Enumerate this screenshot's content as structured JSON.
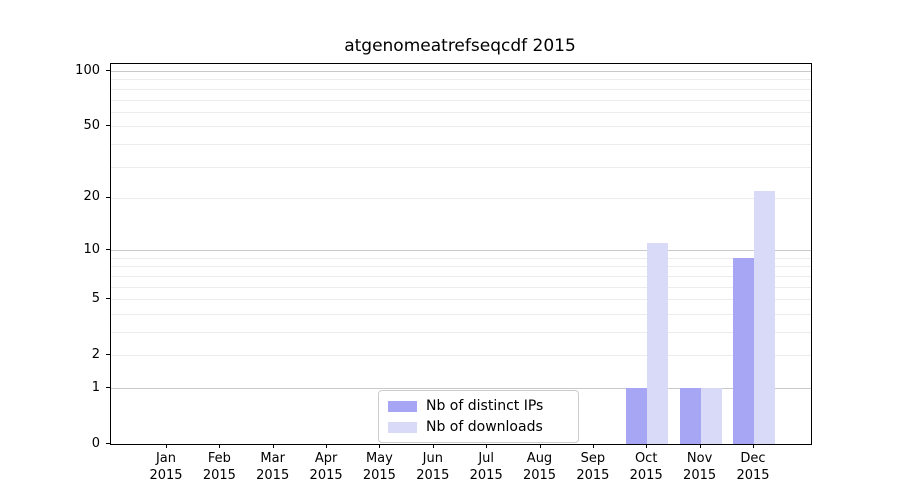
{
  "chart_data": {
    "type": "bar",
    "title": "atgenomeatrefseqcdf 2015",
    "x_year": "2015",
    "categories": [
      "Jan",
      "Feb",
      "Mar",
      "Apr",
      "May",
      "Jun",
      "Jul",
      "Aug",
      "Sep",
      "Oct",
      "Nov",
      "Dec"
    ],
    "series": [
      {
        "name": "Nb of distinct IPs",
        "color": "#a6a6f4",
        "values": [
          0,
          0,
          0,
          0,
          0,
          0,
          0,
          0,
          0,
          1,
          1,
          9
        ]
      },
      {
        "name": "Nb of downloads",
        "color": "#d9d9f8",
        "values": [
          0,
          0,
          0,
          0,
          0,
          0,
          0,
          0,
          0,
          11,
          1,
          22
        ]
      }
    ],
    "y_axis": {
      "scale": "log1p",
      "ticks": [
        0,
        1,
        2,
        5,
        10,
        20,
        50,
        100
      ],
      "major_gridlines": [
        1,
        10,
        100
      ],
      "minor_gridlines": [
        2,
        3,
        4,
        5,
        6,
        7,
        8,
        9,
        20,
        30,
        40,
        50,
        60,
        70,
        80,
        90
      ],
      "top_in_log_units": 2.042
    },
    "legend": {
      "position": "lower-center"
    },
    "colors": {
      "major_grid": "#c9c9c9",
      "minor_grid": "#ececec",
      "axis": "#000000",
      "background": "#ffffff"
    },
    "xlabel": "",
    "ylabel": ""
  }
}
